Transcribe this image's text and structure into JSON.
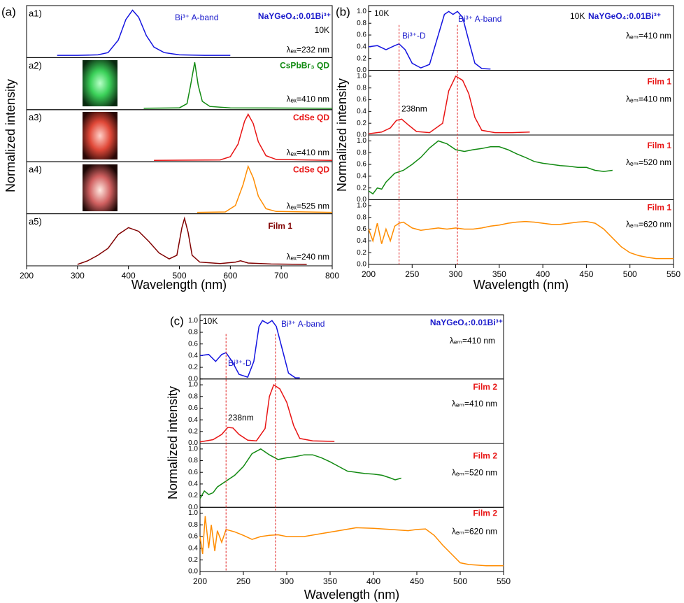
{
  "chart_data": [
    {
      "type": "line",
      "panel_label": "(a)",
      "xlabel": "Wavelength (nm)",
      "ylabel": "Normalized intensity",
      "xlim": [
        200,
        800
      ],
      "xticks": [
        200,
        300,
        400,
        500,
        600,
        700,
        800
      ],
      "ylim": [
        -0.03,
        1.1
      ],
      "subplots": [
        {
          "label": "a1)",
          "texts": [
            "Bi³⁺ A-band",
            "NaYGeO₄:0.01Bi³⁺",
            "10K",
            "λₑₓ=232 nm"
          ],
          "color": "#1414e0",
          "x": [
            260,
            300,
            340,
            360,
            380,
            395,
            408,
            420,
            435,
            450,
            470,
            500,
            550,
            600
          ],
          "values": [
            0.02,
            0.02,
            0.03,
            0.08,
            0.35,
            0.8,
            1.0,
            0.85,
            0.45,
            0.2,
            0.08,
            0.03,
            0.02,
            0.02
          ]
        },
        {
          "label": "a2)",
          "texts": [
            "CsPbBr₃ QD",
            "λₑₓ=410 nm"
          ],
          "color": "#128a12",
          "x": [
            430,
            500,
            515,
            522,
            530,
            537,
            545,
            560,
            600,
            800
          ],
          "values": [
            0.0,
            0.01,
            0.1,
            0.5,
            1.0,
            0.5,
            0.15,
            0.04,
            0.01,
            0.0
          ]
        },
        {
          "label": "a3)",
          "texts": [
            "CdSe QD",
            "λₑₓ=410 nm"
          ],
          "color": "#e81414",
          "x": [
            450,
            580,
            600,
            615,
            628,
            635,
            645,
            655,
            670,
            690,
            800
          ],
          "values": [
            0.0,
            0.01,
            0.08,
            0.35,
            0.85,
            1.0,
            0.8,
            0.4,
            0.1,
            0.02,
            0.0
          ]
        },
        {
          "label": "a4)",
          "texts": [
            "CdSe QD",
            "λₑₓ=525 nm"
          ],
          "color": "#ff8c00",
          "x": [
            535,
            590,
            610,
            625,
            635,
            645,
            655,
            670,
            690,
            800
          ],
          "values": [
            0.0,
            0.01,
            0.15,
            0.6,
            1.0,
            0.75,
            0.35,
            0.08,
            0.02,
            0.0
          ]
        },
        {
          "label": "a5)",
          "texts": [
            "Film 1",
            "λₑₓ=240 nm"
          ],
          "color": "#800000",
          "x": [
            300,
            320,
            340,
            360,
            380,
            400,
            420,
            440,
            460,
            480,
            495,
            505,
            510,
            517,
            525,
            540,
            580,
            610,
            620,
            635,
            680,
            750
          ],
          "values": [
            0.0,
            0.08,
            0.2,
            0.35,
            0.65,
            0.8,
            0.72,
            0.5,
            0.25,
            0.12,
            0.2,
            0.8,
            1.0,
            0.7,
            0.2,
            0.05,
            0.02,
            0.05,
            0.08,
            0.03,
            0.01,
            0.0
          ]
        }
      ]
    },
    {
      "type": "line",
      "panel_label": "(b)",
      "xlabel": "Wavelength (nm)",
      "ylabel": "Normalized intensity",
      "xlim": [
        200,
        550
      ],
      "xticks": [
        200,
        250,
        300,
        350,
        400,
        450,
        500,
        550
      ],
      "ylim": [
        0,
        1.1
      ],
      "yticks": [
        {
          "value": 0,
          "label": "0.0"
        },
        0.2,
        0.4,
        0.6,
        0.8,
        {
          "value": 1,
          "label": "1.0"
        }
      ],
      "vlines": [
        235,
        302
      ],
      "vline_color": "#e02020",
      "subplots": [
        {
          "texts": [
            "10K",
            "Bi³⁺-D",
            "Bi³⁺ A-band",
            "10K",
            "NaYGeO₄:0.01Bi³⁺",
            "λₑₘ=410 nm"
          ],
          "color": "#1414e0",
          "x": [
            200,
            210,
            220,
            230,
            235,
            242,
            250,
            260,
            270,
            280,
            287,
            292,
            297,
            302,
            308,
            315,
            322,
            330,
            340
          ],
          "values": [
            0.4,
            0.42,
            0.35,
            0.42,
            0.45,
            0.35,
            0.12,
            0.04,
            0.1,
            0.6,
            0.95,
            1.0,
            0.95,
            1.0,
            0.9,
            0.5,
            0.12,
            0.03,
            0.02
          ]
        },
        {
          "texts": [
            "Film 1",
            "λₑₘ=410 nm",
            "238nm"
          ],
          "color": "#e81414",
          "x": [
            200,
            215,
            225,
            232,
            238,
            245,
            255,
            270,
            285,
            292,
            300,
            308,
            315,
            322,
            330,
            345,
            365,
            385
          ],
          "values": [
            0.02,
            0.05,
            0.12,
            0.25,
            0.27,
            0.18,
            0.06,
            0.04,
            0.2,
            0.75,
            1.0,
            0.93,
            0.7,
            0.3,
            0.08,
            0.04,
            0.04,
            0.05
          ]
        },
        {
          "texts": [
            "Film 1",
            "λₑₘ=520 nm"
          ],
          "color": "#128a12",
          "x": [
            200,
            205,
            210,
            215,
            220,
            230,
            240,
            250,
            260,
            270,
            280,
            290,
            300,
            310,
            320,
            330,
            340,
            350,
            360,
            370,
            380,
            390,
            400,
            410,
            420,
            430,
            440,
            450,
            460,
            470,
            480
          ],
          "values": [
            0.15,
            0.1,
            0.2,
            0.18,
            0.3,
            0.45,
            0.5,
            0.6,
            0.72,
            0.88,
            1.0,
            0.95,
            0.85,
            0.82,
            0.85,
            0.87,
            0.9,
            0.9,
            0.85,
            0.78,
            0.72,
            0.65,
            0.62,
            0.6,
            0.58,
            0.57,
            0.55,
            0.55,
            0.5,
            0.48,
            0.5
          ]
        },
        {
          "texts": [
            "Film 1",
            "λₑₘ=620 nm"
          ],
          "color": "#ff8c00",
          "x": [
            200,
            205,
            210,
            215,
            220,
            225,
            230,
            235,
            240,
            250,
            260,
            270,
            280,
            290,
            300,
            310,
            320,
            330,
            340,
            350,
            360,
            370,
            380,
            390,
            400,
            410,
            420,
            430,
            440,
            450,
            460,
            470,
            480,
            490,
            500,
            510,
            520,
            530,
            540,
            550
          ],
          "values": [
            0.6,
            0.4,
            0.7,
            0.35,
            0.6,
            0.4,
            0.65,
            0.7,
            0.72,
            0.62,
            0.58,
            0.6,
            0.62,
            0.6,
            0.62,
            0.6,
            0.6,
            0.62,
            0.65,
            0.67,
            0.7,
            0.72,
            0.73,
            0.72,
            0.7,
            0.68,
            0.68,
            0.7,
            0.72,
            0.73,
            0.7,
            0.6,
            0.45,
            0.3,
            0.2,
            0.15,
            0.12,
            0.1,
            0.1,
            0.1
          ]
        }
      ]
    },
    {
      "type": "line",
      "panel_label": "(c)",
      "xlabel": "Wavelength (nm)",
      "ylabel": "Normalized intensity",
      "xlim": [
        200,
        550
      ],
      "xticks": [
        200,
        250,
        300,
        350,
        400,
        450,
        500,
        550
      ],
      "ylim": [
        0,
        1.1
      ],
      "yticks": [
        {
          "value": 0,
          "label": "0.0"
        },
        0.2,
        0.4,
        0.6,
        0.8,
        {
          "value": 1,
          "label": "1.0"
        }
      ],
      "vlines": [
        230,
        287
      ],
      "vline_color": "#e02020",
      "subplots": [
        {
          "texts": [
            "10K",
            "Bi³⁺-D",
            "Bi³⁺ A-band",
            "NaYGeO₄:0.01Bi³⁺",
            "λₑₘ=410 nm"
          ],
          "color": "#1414e0",
          "x": [
            200,
            210,
            218,
            225,
            230,
            237,
            245,
            255,
            262,
            268,
            272,
            278,
            283,
            288,
            295,
            302,
            310,
            315
          ],
          "values": [
            0.4,
            0.42,
            0.3,
            0.42,
            0.45,
            0.3,
            0.08,
            0.03,
            0.3,
            0.9,
            1.0,
            0.95,
            1.0,
            0.9,
            0.5,
            0.1,
            0.02,
            0.02
          ]
        },
        {
          "texts": [
            "Film 2",
            "λₑₘ=410 nm",
            "238nm"
          ],
          "color": "#e81414",
          "x": [
            200,
            215,
            225,
            232,
            238,
            245,
            255,
            265,
            275,
            280,
            285,
            292,
            300,
            308,
            315,
            330,
            355
          ],
          "values": [
            0.02,
            0.06,
            0.15,
            0.27,
            0.26,
            0.15,
            0.05,
            0.04,
            0.25,
            0.8,
            1.0,
            0.93,
            0.7,
            0.3,
            0.08,
            0.04,
            0.03
          ]
        },
        {
          "texts": [
            "Film 2",
            "λₑₘ=520 nm"
          ],
          "color": "#128a12",
          "x": [
            200,
            205,
            210,
            215,
            220,
            230,
            240,
            250,
            260,
            270,
            280,
            290,
            300,
            310,
            320,
            330,
            340,
            350,
            360,
            370,
            380,
            390,
            400,
            410,
            420,
            425,
            432
          ],
          "values": [
            0.15,
            0.28,
            0.22,
            0.25,
            0.35,
            0.45,
            0.55,
            0.7,
            0.92,
            1.0,
            0.9,
            0.82,
            0.85,
            0.87,
            0.9,
            0.9,
            0.85,
            0.78,
            0.7,
            0.62,
            0.6,
            0.58,
            0.57,
            0.55,
            0.5,
            0.47,
            0.5
          ]
        },
        {
          "texts": [
            "Film 2",
            "λₑₘ=620 nm"
          ],
          "color": "#ff8c00",
          "x": [
            200,
            203,
            206,
            210,
            213,
            217,
            220,
            225,
            230,
            240,
            250,
            260,
            270,
            280,
            290,
            300,
            320,
            340,
            360,
            380,
            400,
            420,
            440,
            450,
            460,
            470,
            480,
            490,
            500,
            510,
            530,
            550
          ],
          "values": [
            0.6,
            0.3,
            0.95,
            0.4,
            0.8,
            0.35,
            0.7,
            0.5,
            0.72,
            0.68,
            0.62,
            0.55,
            0.6,
            0.62,
            0.63,
            0.6,
            0.6,
            0.65,
            0.7,
            0.75,
            0.74,
            0.72,
            0.7,
            0.72,
            0.73,
            0.62,
            0.45,
            0.3,
            0.15,
            0.12,
            0.1,
            0.1
          ]
        }
      ]
    }
  ]
}
